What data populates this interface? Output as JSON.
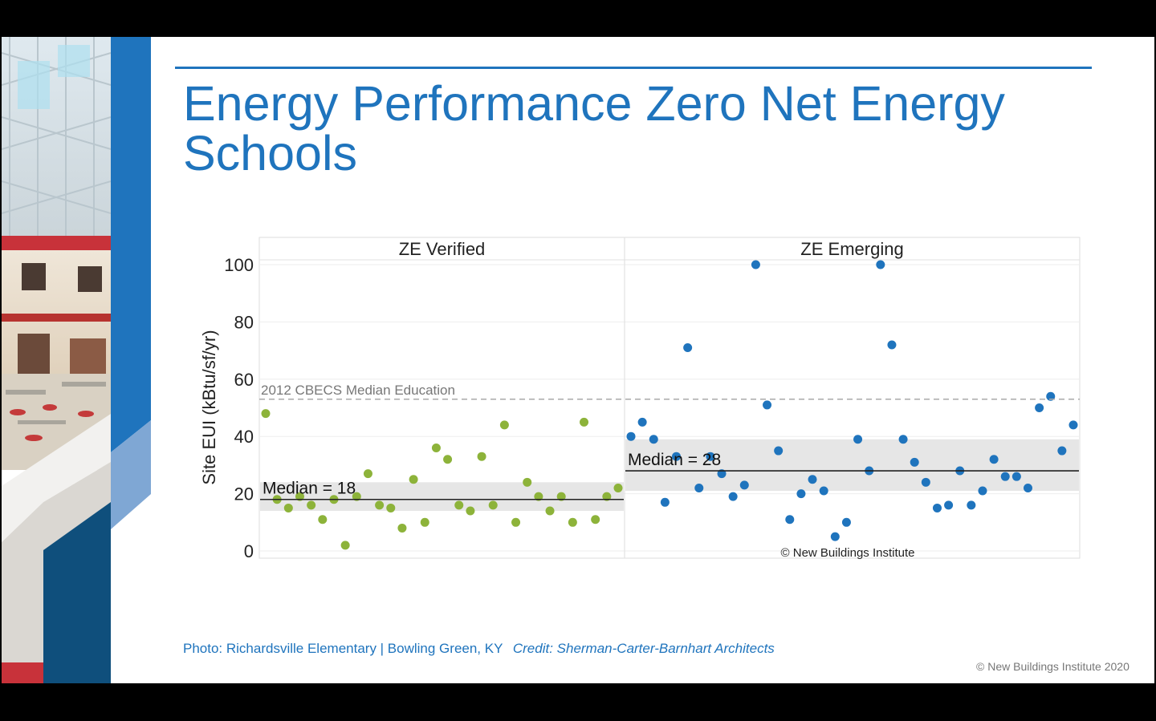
{
  "slide": {
    "title": "Energy Performance Zero Net Energy Schools",
    "photo_caption": "Photo: Richardsville Elementary | Bowling Green, KY",
    "photo_credit": "Credit: Sherman-Carter-Barnhart Architects",
    "footer": "© New Buildings Institute 2020"
  },
  "chart_data": {
    "type": "scatter",
    "ylabel": "Site EUI (kBtu/sf/yr)",
    "ylim": [
      0,
      105
    ],
    "yticks": [
      0,
      20,
      40,
      60,
      80,
      100
    ],
    "grid": true,
    "watermark": "© New Buildings Institute",
    "reference_line": {
      "label": "2012 CBECS Median Education",
      "value": 53
    },
    "panels": [
      {
        "name": "ZE Verified",
        "color": "#8db33a",
        "median": 18,
        "median_label": "Median = 18",
        "band": [
          14,
          24
        ],
        "values": [
          48,
          18,
          15,
          19,
          16,
          11,
          18,
          2,
          19,
          27,
          16,
          15,
          8,
          25,
          10,
          36,
          32,
          16,
          14,
          33,
          16,
          44,
          10,
          24,
          19,
          14,
          19,
          10,
          45,
          11,
          19,
          22
        ]
      },
      {
        "name": "ZE Emerging",
        "color": "#1f74bd",
        "median": 28,
        "median_label": "Median = 28",
        "band": [
          21,
          39
        ],
        "values": [
          40,
          45,
          39,
          17,
          33,
          71,
          22,
          33,
          27,
          19,
          23,
          100,
          51,
          35,
          11,
          20,
          25,
          21,
          5,
          10,
          39,
          28,
          100,
          72,
          39,
          31,
          24,
          15,
          16,
          28,
          16,
          21,
          32,
          26,
          26,
          22,
          50,
          54,
          35,
          44
        ]
      }
    ]
  }
}
